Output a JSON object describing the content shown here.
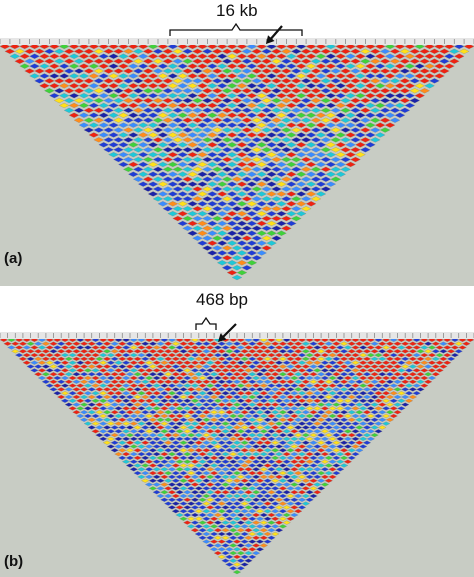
{
  "panels": [
    {
      "id": "a",
      "letter": "(a)",
      "scale_label": "16 kb",
      "n_markers": 48,
      "colors": {
        "background": "#c8ccc4",
        "marker_strip": "#e6e6e6",
        "red": "#ee2211",
        "orange": "#ff8c1a",
        "yellow": "#ffe01a",
        "green": "#3fd13a",
        "cyan": "#1ec8d8",
        "light_blue": "#3a8cff",
        "blue": "#1f3cd6",
        "dark_blue": "#1a22a8"
      }
    },
    {
      "id": "b",
      "letter": "(b)",
      "scale_label": "468 bp",
      "n_markers": 62,
      "colors": {
        "background": "#c8ccc4",
        "marker_strip": "#e6e6e6",
        "red": "#ee2211",
        "orange": "#ff8c1a",
        "yellow": "#ffe01a",
        "green": "#3fd13a",
        "cyan": "#1ec8d8",
        "light_blue": "#3a8cff",
        "blue": "#1f3cd6",
        "dark_blue": "#1a22a8"
      }
    }
  ]
}
